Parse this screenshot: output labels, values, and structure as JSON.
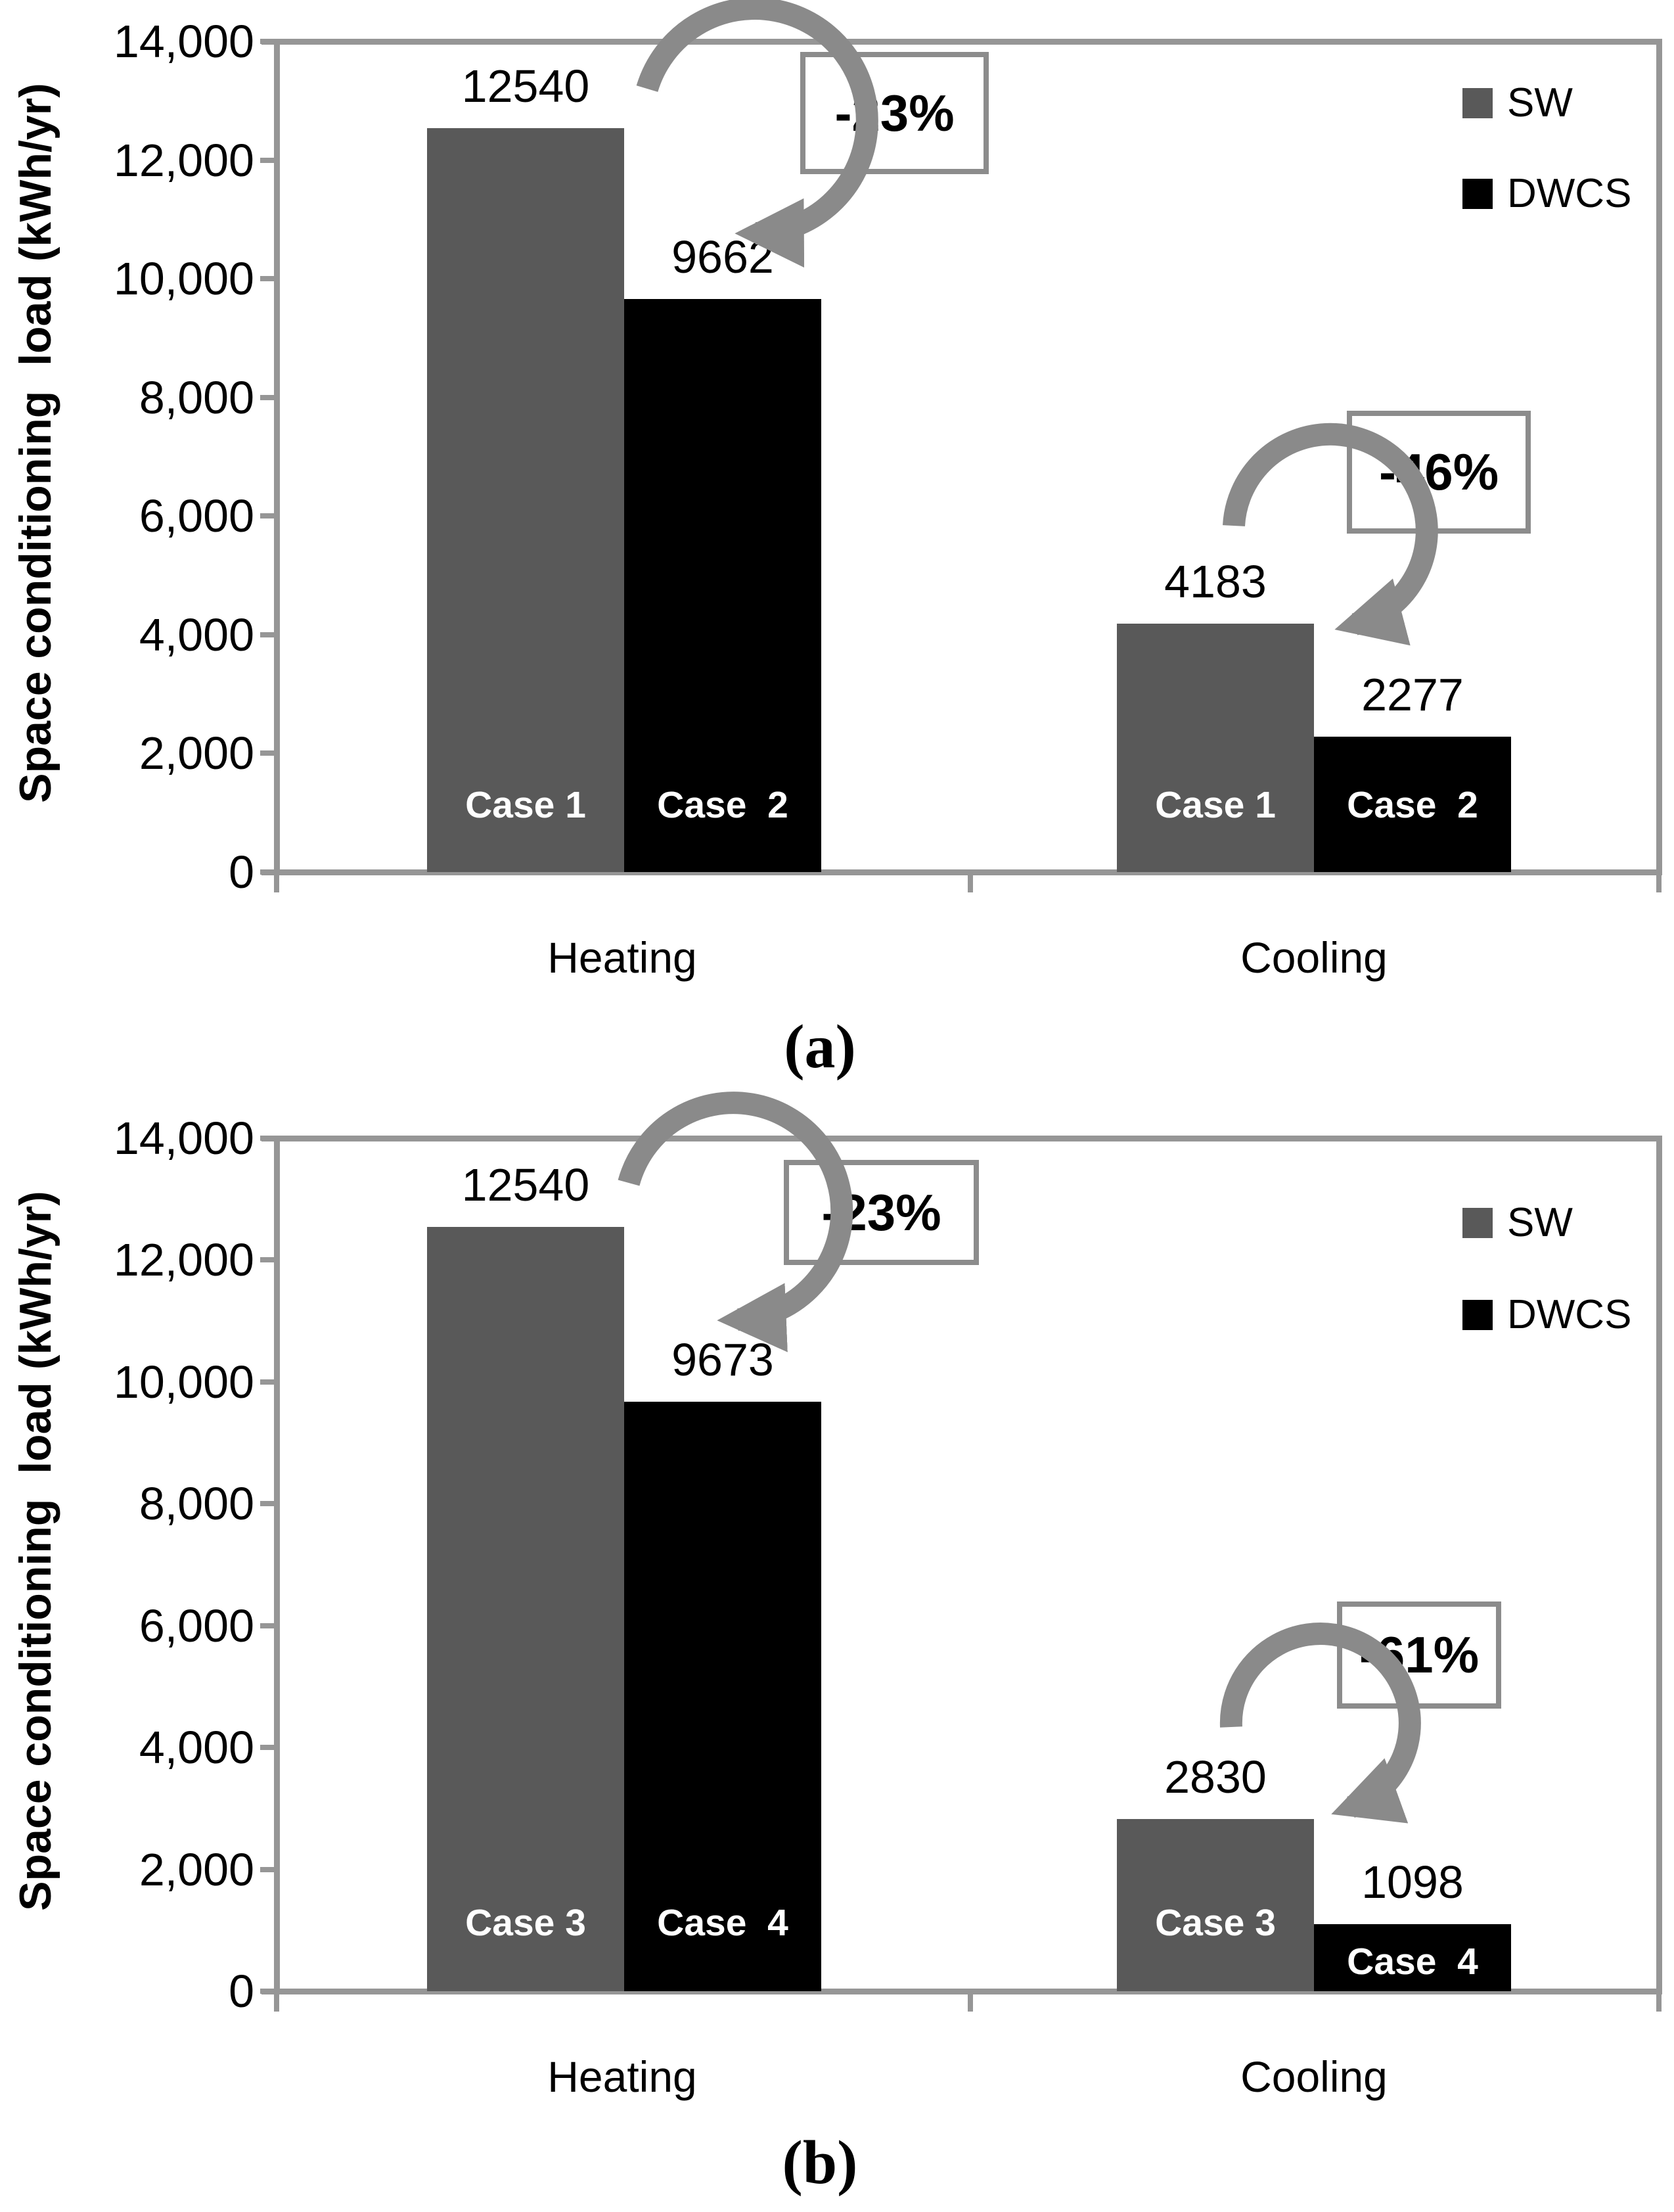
{
  "figure": {
    "kind": "two stacked grouped bar charts",
    "colors": {
      "sw_bar": "#595959",
      "dwcs_bar": "#000000",
      "axis": "#969696",
      "arrow": "#8a8a8a",
      "annotation_border": "#8c8c8c"
    }
  },
  "chart_data": [
    {
      "id": "a",
      "type": "bar",
      "caption": "(a)",
      "ylabel": "Space conditioning  load (kWh/yr)",
      "xlabel": "",
      "ylim": [
        0,
        14000
      ],
      "ytick_step": 2000,
      "ytick_labels": [
        "0",
        "2,000",
        "4,000",
        "6,000",
        "8,000",
        "10,000",
        "12,000",
        "14,000"
      ],
      "categories": [
        "Heating",
        "Cooling"
      ],
      "grid": false,
      "legend_position": "top-right",
      "series": [
        {
          "name": "SW",
          "color": "#595959",
          "values": [
            12540,
            4183
          ],
          "bar_labels": [
            "Case 1",
            "Case 1"
          ]
        },
        {
          "name": "DWCS",
          "color": "#000000",
          "values": [
            9662,
            2277
          ],
          "bar_labels": [
            "Case  2",
            "Case  2"
          ]
        }
      ],
      "annotations": [
        {
          "text": "-23%",
          "category": "Heating",
          "meaning": "reduction from SW 12540 to DWCS 9662"
        },
        {
          "text": "-46%",
          "category": "Cooling",
          "meaning": "reduction from SW 4183 to DWCS 2277"
        }
      ]
    },
    {
      "id": "b",
      "type": "bar",
      "caption": "(b)",
      "ylabel": "Space conditioning  load (kWh/yr)",
      "xlabel": "",
      "ylim": [
        0,
        14000
      ],
      "ytick_step": 2000,
      "ytick_labels": [
        "0",
        "2,000",
        "4,000",
        "6,000",
        "8,000",
        "10,000",
        "12,000",
        "14,000"
      ],
      "categories": [
        "Heating",
        "Cooling"
      ],
      "grid": false,
      "legend_position": "top-right",
      "series": [
        {
          "name": "SW",
          "color": "#595959",
          "values": [
            12540,
            2830
          ],
          "bar_labels": [
            "Case 3",
            "Case 3"
          ]
        },
        {
          "name": "DWCS",
          "color": "#000000",
          "values": [
            9673,
            1098
          ],
          "bar_labels": [
            "Case  4",
            "Case  4"
          ]
        }
      ],
      "annotations": [
        {
          "text": "-23%",
          "category": "Heating",
          "meaning": "reduction from SW 12540 to DWCS 9673"
        },
        {
          "text": "-61%",
          "category": "Cooling",
          "meaning": "reduction from SW 2830 to DWCS 1098"
        }
      ]
    }
  ]
}
